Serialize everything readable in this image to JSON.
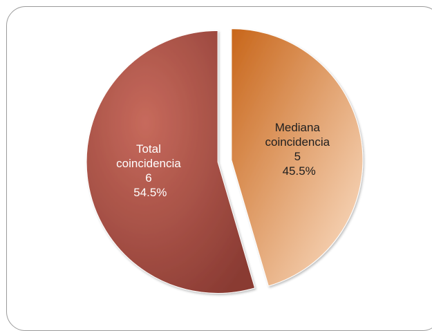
{
  "chart_data": {
    "type": "pie",
    "slices": [
      {
        "key": "mediana",
        "lines": [
          "Mediana",
          "coincidencia",
          "5",
          "45.5%"
        ],
        "value": 5,
        "percent": "45.5%",
        "color_dark": "#c8661a",
        "color_light": "#fde3cc",
        "label_color": "#1e1e1e"
      },
      {
        "key": "total",
        "lines": [
          "Total",
          "coincidencia",
          "6",
          "54.5%"
        ],
        "value": 6,
        "percent": "54.5%",
        "color_dark": "#8a3b33",
        "color_light": "#c76a5c",
        "label_color": "#ffffff"
      }
    ],
    "legend": "none"
  }
}
